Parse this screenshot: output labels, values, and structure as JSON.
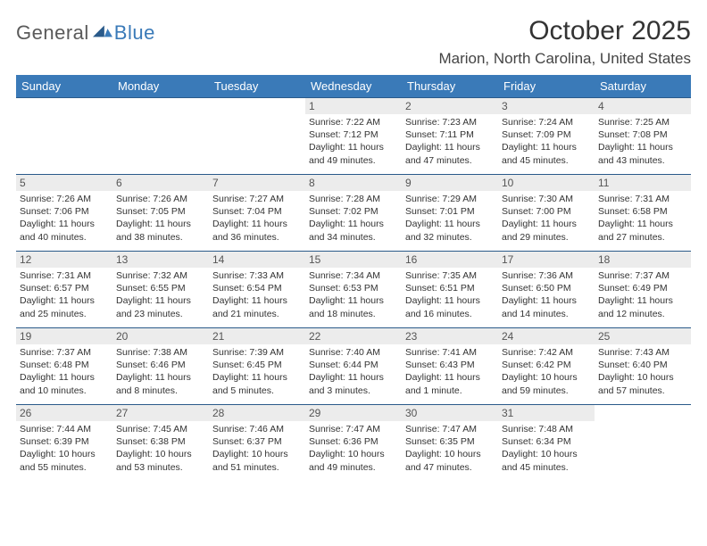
{
  "logo": {
    "general": "General",
    "blue": "Blue"
  },
  "title": "October 2025",
  "location": "Marion, North Carolina, United States",
  "colors": {
    "header_bg": "#3a7ab8",
    "header_text": "#ffffff",
    "border": "#2a5a8a",
    "daynum_bg": "#ececec",
    "daynum_text": "#555555",
    "body_text": "#333333",
    "logo_gray": "#5a5a5a",
    "logo_blue": "#3a7ab8"
  },
  "dayHeaders": [
    "Sunday",
    "Monday",
    "Tuesday",
    "Wednesday",
    "Thursday",
    "Friday",
    "Saturday"
  ],
  "weeks": [
    [
      {
        "num": "",
        "sunrise": "",
        "sunset": "",
        "daylight": ""
      },
      {
        "num": "",
        "sunrise": "",
        "sunset": "",
        "daylight": ""
      },
      {
        "num": "",
        "sunrise": "",
        "sunset": "",
        "daylight": ""
      },
      {
        "num": "1",
        "sunrise": "Sunrise: 7:22 AM",
        "sunset": "Sunset: 7:12 PM",
        "daylight": "Daylight: 11 hours and 49 minutes."
      },
      {
        "num": "2",
        "sunrise": "Sunrise: 7:23 AM",
        "sunset": "Sunset: 7:11 PM",
        "daylight": "Daylight: 11 hours and 47 minutes."
      },
      {
        "num": "3",
        "sunrise": "Sunrise: 7:24 AM",
        "sunset": "Sunset: 7:09 PM",
        "daylight": "Daylight: 11 hours and 45 minutes."
      },
      {
        "num": "4",
        "sunrise": "Sunrise: 7:25 AM",
        "sunset": "Sunset: 7:08 PM",
        "daylight": "Daylight: 11 hours and 43 minutes."
      }
    ],
    [
      {
        "num": "5",
        "sunrise": "Sunrise: 7:26 AM",
        "sunset": "Sunset: 7:06 PM",
        "daylight": "Daylight: 11 hours and 40 minutes."
      },
      {
        "num": "6",
        "sunrise": "Sunrise: 7:26 AM",
        "sunset": "Sunset: 7:05 PM",
        "daylight": "Daylight: 11 hours and 38 minutes."
      },
      {
        "num": "7",
        "sunrise": "Sunrise: 7:27 AM",
        "sunset": "Sunset: 7:04 PM",
        "daylight": "Daylight: 11 hours and 36 minutes."
      },
      {
        "num": "8",
        "sunrise": "Sunrise: 7:28 AM",
        "sunset": "Sunset: 7:02 PM",
        "daylight": "Daylight: 11 hours and 34 minutes."
      },
      {
        "num": "9",
        "sunrise": "Sunrise: 7:29 AM",
        "sunset": "Sunset: 7:01 PM",
        "daylight": "Daylight: 11 hours and 32 minutes."
      },
      {
        "num": "10",
        "sunrise": "Sunrise: 7:30 AM",
        "sunset": "Sunset: 7:00 PM",
        "daylight": "Daylight: 11 hours and 29 minutes."
      },
      {
        "num": "11",
        "sunrise": "Sunrise: 7:31 AM",
        "sunset": "Sunset: 6:58 PM",
        "daylight": "Daylight: 11 hours and 27 minutes."
      }
    ],
    [
      {
        "num": "12",
        "sunrise": "Sunrise: 7:31 AM",
        "sunset": "Sunset: 6:57 PM",
        "daylight": "Daylight: 11 hours and 25 minutes."
      },
      {
        "num": "13",
        "sunrise": "Sunrise: 7:32 AM",
        "sunset": "Sunset: 6:55 PM",
        "daylight": "Daylight: 11 hours and 23 minutes."
      },
      {
        "num": "14",
        "sunrise": "Sunrise: 7:33 AM",
        "sunset": "Sunset: 6:54 PM",
        "daylight": "Daylight: 11 hours and 21 minutes."
      },
      {
        "num": "15",
        "sunrise": "Sunrise: 7:34 AM",
        "sunset": "Sunset: 6:53 PM",
        "daylight": "Daylight: 11 hours and 18 minutes."
      },
      {
        "num": "16",
        "sunrise": "Sunrise: 7:35 AM",
        "sunset": "Sunset: 6:51 PM",
        "daylight": "Daylight: 11 hours and 16 minutes."
      },
      {
        "num": "17",
        "sunrise": "Sunrise: 7:36 AM",
        "sunset": "Sunset: 6:50 PM",
        "daylight": "Daylight: 11 hours and 14 minutes."
      },
      {
        "num": "18",
        "sunrise": "Sunrise: 7:37 AM",
        "sunset": "Sunset: 6:49 PM",
        "daylight": "Daylight: 11 hours and 12 minutes."
      }
    ],
    [
      {
        "num": "19",
        "sunrise": "Sunrise: 7:37 AM",
        "sunset": "Sunset: 6:48 PM",
        "daylight": "Daylight: 11 hours and 10 minutes."
      },
      {
        "num": "20",
        "sunrise": "Sunrise: 7:38 AM",
        "sunset": "Sunset: 6:46 PM",
        "daylight": "Daylight: 11 hours and 8 minutes."
      },
      {
        "num": "21",
        "sunrise": "Sunrise: 7:39 AM",
        "sunset": "Sunset: 6:45 PM",
        "daylight": "Daylight: 11 hours and 5 minutes."
      },
      {
        "num": "22",
        "sunrise": "Sunrise: 7:40 AM",
        "sunset": "Sunset: 6:44 PM",
        "daylight": "Daylight: 11 hours and 3 minutes."
      },
      {
        "num": "23",
        "sunrise": "Sunrise: 7:41 AM",
        "sunset": "Sunset: 6:43 PM",
        "daylight": "Daylight: 11 hours and 1 minute."
      },
      {
        "num": "24",
        "sunrise": "Sunrise: 7:42 AM",
        "sunset": "Sunset: 6:42 PM",
        "daylight": "Daylight: 10 hours and 59 minutes."
      },
      {
        "num": "25",
        "sunrise": "Sunrise: 7:43 AM",
        "sunset": "Sunset: 6:40 PM",
        "daylight": "Daylight: 10 hours and 57 minutes."
      }
    ],
    [
      {
        "num": "26",
        "sunrise": "Sunrise: 7:44 AM",
        "sunset": "Sunset: 6:39 PM",
        "daylight": "Daylight: 10 hours and 55 minutes."
      },
      {
        "num": "27",
        "sunrise": "Sunrise: 7:45 AM",
        "sunset": "Sunset: 6:38 PM",
        "daylight": "Daylight: 10 hours and 53 minutes."
      },
      {
        "num": "28",
        "sunrise": "Sunrise: 7:46 AM",
        "sunset": "Sunset: 6:37 PM",
        "daylight": "Daylight: 10 hours and 51 minutes."
      },
      {
        "num": "29",
        "sunrise": "Sunrise: 7:47 AM",
        "sunset": "Sunset: 6:36 PM",
        "daylight": "Daylight: 10 hours and 49 minutes."
      },
      {
        "num": "30",
        "sunrise": "Sunrise: 7:47 AM",
        "sunset": "Sunset: 6:35 PM",
        "daylight": "Daylight: 10 hours and 47 minutes."
      },
      {
        "num": "31",
        "sunrise": "Sunrise: 7:48 AM",
        "sunset": "Sunset: 6:34 PM",
        "daylight": "Daylight: 10 hours and 45 minutes."
      },
      {
        "num": "",
        "sunrise": "",
        "sunset": "",
        "daylight": ""
      }
    ]
  ]
}
